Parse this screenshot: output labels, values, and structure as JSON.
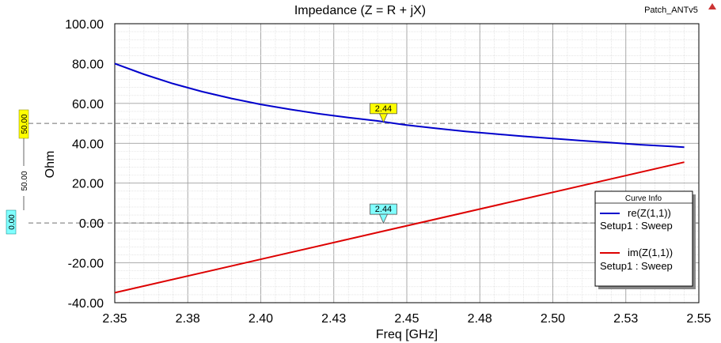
{
  "project_name": "Patch_ANTv5",
  "chart_data": {
    "type": "line",
    "title": "Impedance (Z = R + jX)",
    "xlabel": "Freq [GHz]",
    "ylabel": "Ohm",
    "xlim": [
      2.35,
      2.55
    ],
    "ylim": [
      -40,
      100
    ],
    "x_ticks": [
      2.35,
      2.375,
      2.4,
      2.425,
      2.45,
      2.475,
      2.5,
      2.525,
      2.55
    ],
    "x_tick_labels": [
      "2.35",
      "2.38",
      "2.40",
      "2.43",
      "2.45",
      "2.48",
      "2.50",
      "2.53",
      "2.55"
    ],
    "y_ticks": [
      100,
      80,
      60,
      40,
      20,
      0,
      -20,
      -40
    ],
    "y_tick_labels": [
      "100.00",
      "80.00",
      "60.00",
      "40.00",
      "20.00",
      "0.00",
      "-20.00",
      "-40.00"
    ],
    "grid": true,
    "legend": {
      "title": "Curve Info",
      "position": "right"
    },
    "series": [
      {
        "name": "re(Z(1,1))",
        "setup": "Setup1 : Sweep",
        "color": "#0000cc",
        "x": [
          2.35,
          2.36,
          2.37,
          2.38,
          2.39,
          2.4,
          2.41,
          2.42,
          2.43,
          2.44,
          2.45,
          2.46,
          2.47,
          2.48,
          2.49,
          2.5,
          2.51,
          2.52,
          2.53,
          2.54,
          2.545
        ],
        "values": [
          80.0,
          74.6,
          69.9,
          65.9,
          62.5,
          59.5,
          57.0,
          54.8,
          52.9,
          51.2,
          49.1,
          47.5,
          46.0,
          44.7,
          43.5,
          42.4,
          41.3,
          40.3,
          39.3,
          38.5,
          38.0
        ]
      },
      {
        "name": "im(Z(1,1))",
        "setup": "Setup1 : Sweep",
        "color": "#dd0000",
        "x": [
          2.35,
          2.545
        ],
        "values": [
          -35.0,
          30.5
        ]
      }
    ],
    "markers": [
      {
        "label": "2.44",
        "series": "re(Z(1,1))",
        "x": 2.442,
        "y": 50.5,
        "color": "#ffff00"
      },
      {
        "label": "2.44",
        "series": "im(Z(1,1))",
        "x": 2.442,
        "y": 0.0,
        "color": "#80ffff"
      }
    ],
    "reference_lines": [
      {
        "y": 50,
        "label": "50.00",
        "color": "#ffff00",
        "axis_label": "50.00"
      },
      {
        "y": 0,
        "label": "0.00",
        "color": "#80ffff"
      }
    ]
  }
}
